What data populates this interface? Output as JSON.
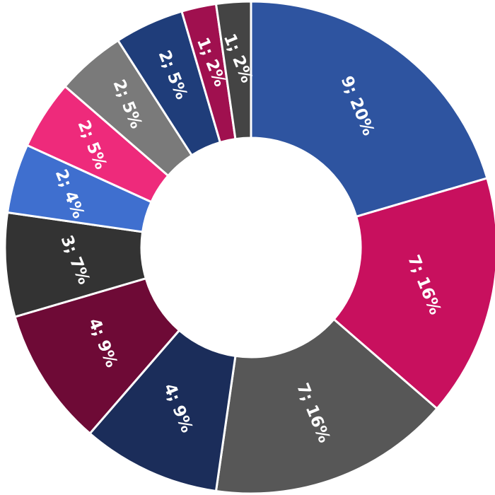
{
  "chart_data": {
    "type": "donut",
    "categories": [
      null,
      null,
      null,
      null,
      null,
      null,
      null,
      null,
      null,
      null,
      null,
      null
    ],
    "values": [
      9,
      7,
      7,
      4,
      4,
      3,
      2,
      2,
      2,
      2,
      1,
      1
    ],
    "value_labels": [
      "9; 20%",
      "7; 16%",
      "7; 16%",
      "4; 9%",
      "4; 9%",
      "3; 7%",
      "2; 4%",
      "2; 5%",
      "2; 5%",
      "2; 5%",
      "1; 2%",
      "1; 2%"
    ],
    "colors": [
      "#2e54a0",
      "#c8105e",
      "#575757",
      "#1b2d5a",
      "#6e0a36",
      "#333333",
      "#3f6fcf",
      "#ee2a7b",
      "#7a7a7a",
      "#1f3d7a",
      "#a0104f",
      "#444444"
    ]
  }
}
